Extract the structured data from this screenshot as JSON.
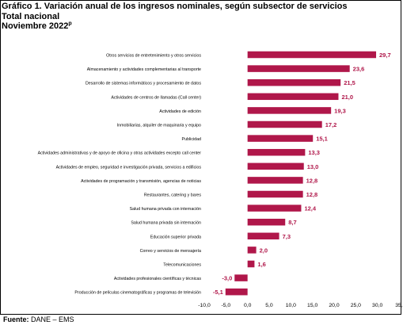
{
  "chart_data": {
    "type": "bar",
    "orientation": "horizontal",
    "title": "Gráfico 1. Variación anual de los ingresos nominales, según subsector de servicios",
    "subtitle": "Total nacional",
    "period": "Noviembre 2022",
    "period_mark": "p",
    "categories": [
      "Otros servicios de entretenimiento y otros servicios",
      "Almacenamiento y actividades complementarias al transporte",
      "Desarrollo de sistemas informáticos y procesamiento de datos",
      "Actividades de centros de llamadas (Call center)",
      "Actividades de edición",
      "Inmobiliarias, alquiler de maquinaria y equipo",
      "Publicidad",
      "Actividades administrativas y de apoyo de oficina y otras actividades excepto call center",
      "Actividades de empleo, seguridad e investigación privada, servicios a edificios",
      "Actividades de programación y transmisión,  agencias de noticias",
      "Restaurantes, catering y bares",
      "Salud humana privada con internación",
      "Salud humana privada sin internación",
      "Educación superior privada",
      "Correo y servicios de mensajería",
      "Telecomunicaciones",
      "Actividades profesionales científicas y técnicas",
      "Producción de películas cinematográficas y programas de televisión"
    ],
    "values": [
      29.7,
      23.6,
      21.5,
      21.0,
      19.3,
      17.2,
      15.1,
      13.3,
      13.0,
      12.8,
      12.8,
      12.4,
      8.7,
      7.3,
      2.0,
      1.6,
      -3.0,
      -5.1
    ],
    "value_labels": [
      "29,7",
      "23,6",
      "21,5",
      "21,0",
      "19,3",
      "17,2",
      "15,1",
      "13,3",
      "13,0",
      "12,8",
      "12,8",
      "12,4",
      "8,7",
      "7,3",
      "2,0",
      "1,6",
      "-3,0",
      "-5,1"
    ],
    "xticks": [
      -10,
      -5,
      0,
      5,
      10,
      15,
      20,
      25,
      30,
      35
    ],
    "xtick_labels": [
      "-10,0",
      "-5,0",
      "0,0",
      "5,0",
      "10,0",
      "15,0",
      "20,0",
      "25,0",
      "30,0",
      "35,"
    ],
    "xlim": [
      -10,
      35
    ],
    "grid": false,
    "legend": "none",
    "colors": {
      "bar": "#b0174a",
      "value_label": "#b0174a",
      "text": "#000000"
    }
  },
  "source": {
    "label": "Fuente:",
    "text": "DANE – EMS"
  }
}
